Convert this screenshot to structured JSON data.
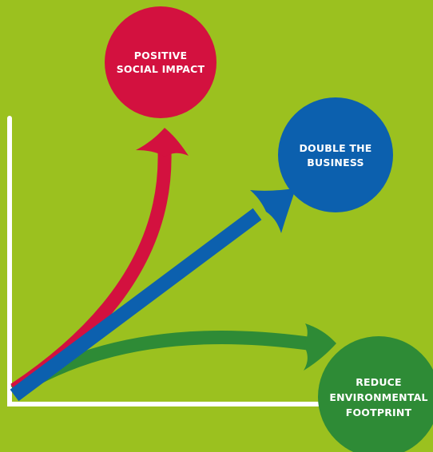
{
  "colors": {
    "background": "#9BC11F",
    "axis": "#FFFFFF",
    "social": "#D3113F",
    "business": "#0C60AE",
    "environment": "#2E8B36"
  },
  "bubbles": {
    "social": {
      "line1": "POSITIVE",
      "line2": "SOCIAL IMPACT"
    },
    "business": {
      "line1": "DOUBLE THE",
      "line2": "BUSINESS"
    },
    "environment": {
      "line1": "REDUCE",
      "line2": "ENVIRONMENTAL",
      "line3": "FOOTPRINT"
    }
  }
}
